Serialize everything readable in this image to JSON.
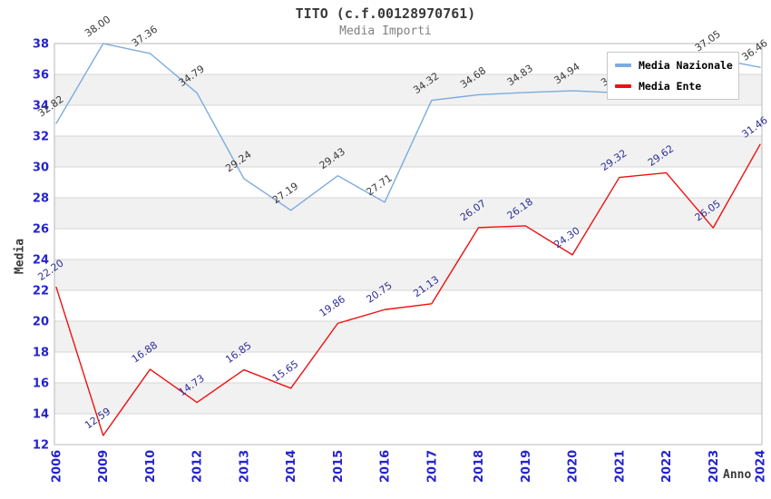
{
  "header": {
    "title": "TITO (c.f.00128970761)",
    "subtitle": "Media Importi"
  },
  "chart_data": {
    "type": "line",
    "title": "TITO (c.f.00128970761)",
    "subtitle": "Media Importi",
    "xlabel": "Anno",
    "ylabel": "Media",
    "x": [
      "2006",
      "2009",
      "2010",
      "2012",
      "2013",
      "2014",
      "2015",
      "2016",
      "2017",
      "2018",
      "2019",
      "2020",
      "2021",
      "2022",
      "2023",
      "2024"
    ],
    "series": [
      {
        "name": "Media Nazionale",
        "color": "#7dabdd",
        "label_color": "#3a3a3a",
        "values": [
          32.82,
          38.0,
          37.36,
          34.79,
          29.24,
          27.19,
          29.43,
          27.71,
          34.32,
          34.68,
          34.83,
          34.94,
          34.8,
          35.4,
          37.05,
          36.46
        ]
      },
      {
        "name": "Media Ente",
        "color": "#ee1111",
        "label_color": "#2e2e99",
        "values": [
          22.2,
          12.59,
          16.88,
          14.73,
          16.85,
          15.65,
          19.86,
          20.75,
          21.13,
          26.07,
          26.18,
          24.3,
          29.32,
          29.62,
          26.05,
          31.46
        ]
      }
    ],
    "ylim": [
      12,
      38
    ],
    "ytick_step": 2,
    "yticks": [
      12,
      14,
      16,
      18,
      20,
      22,
      24,
      26,
      28,
      30,
      32,
      34,
      36,
      38
    ],
    "grid": true,
    "legend_position": "top-right",
    "shaded_bands": [
      [
        14,
        16
      ],
      [
        18,
        20
      ],
      [
        22,
        24
      ],
      [
        26,
        28
      ],
      [
        30,
        32
      ],
      [
        34,
        36
      ]
    ],
    "style": {
      "tick_color": "#2424cc",
      "grid_color": "#d6d6d6",
      "band_color": "#f1f1f1",
      "border_color": "#b8b8b8",
      "background": "#ffffff"
    }
  }
}
